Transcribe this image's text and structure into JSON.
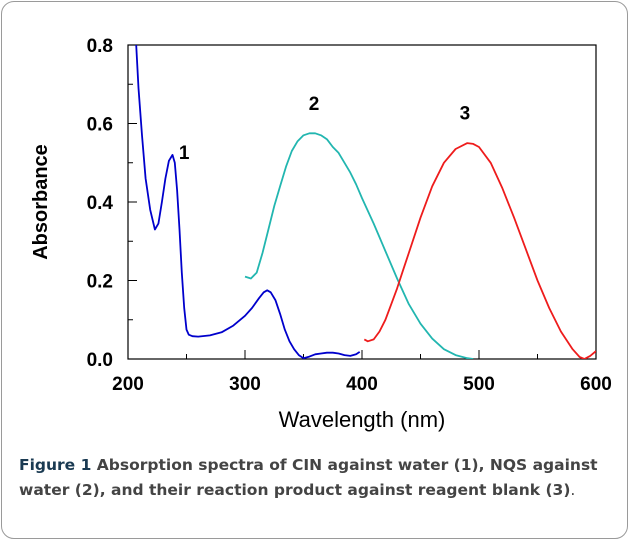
{
  "chart_data": {
    "type": "line",
    "xlabel": "Wavelength (nm)",
    "ylabel": "Absorbance",
    "xlim": [
      200,
      600
    ],
    "ylim": [
      0,
      0.8
    ],
    "x_ticks": [
      "200",
      "300",
      "400",
      "500",
      "600"
    ],
    "y_ticks": [
      "0.0",
      "0.2",
      "0.4",
      "0.6",
      "0.8"
    ],
    "grid": false,
    "series": [
      {
        "name": "1",
        "color": "#0000cc",
        "x": [
          207,
          209,
          212,
          215,
          219,
          223,
          226,
          229,
          232,
          235,
          238,
          240,
          242,
          244,
          246,
          248,
          250,
          252,
          255,
          260,
          270,
          280,
          290,
          300,
          306,
          312,
          316,
          319,
          322,
          326,
          330,
          334,
          338,
          342,
          346,
          350,
          355,
          360,
          365,
          370,
          375,
          380,
          385,
          390,
          395,
          398
        ],
        "y": [
          0.8,
          0.69,
          0.57,
          0.46,
          0.38,
          0.33,
          0.345,
          0.4,
          0.46,
          0.505,
          0.52,
          0.5,
          0.43,
          0.33,
          0.22,
          0.13,
          0.075,
          0.062,
          0.058,
          0.057,
          0.06,
          0.068,
          0.085,
          0.11,
          0.13,
          0.155,
          0.17,
          0.175,
          0.17,
          0.15,
          0.115,
          0.075,
          0.045,
          0.025,
          0.01,
          0.002,
          0.006,
          0.012,
          0.014,
          0.016,
          0.016,
          0.014,
          0.01,
          0.008,
          0.012,
          0.018
        ]
      },
      {
        "name": "2",
        "color": "#22b6b0",
        "x": [
          300,
          305,
          310,
          315,
          320,
          325,
          330,
          335,
          340,
          345,
          350,
          355,
          360,
          365,
          370,
          375,
          380,
          385,
          390,
          395,
          400,
          410,
          420,
          430,
          440,
          450,
          460,
          470,
          480,
          490,
          495
        ],
        "y": [
          0.21,
          0.205,
          0.22,
          0.27,
          0.33,
          0.39,
          0.44,
          0.49,
          0.53,
          0.555,
          0.57,
          0.575,
          0.575,
          0.57,
          0.56,
          0.54,
          0.525,
          0.5,
          0.475,
          0.445,
          0.41,
          0.345,
          0.275,
          0.205,
          0.14,
          0.09,
          0.052,
          0.025,
          0.01,
          0.002,
          0.0
        ]
      },
      {
        "name": "3",
        "color": "#ee1c1c",
        "x": [
          402,
          405,
          410,
          415,
          420,
          425,
          430,
          435,
          440,
          450,
          460,
          470,
          480,
          490,
          495,
          500,
          510,
          520,
          530,
          540,
          550,
          560,
          570,
          580,
          586,
          590,
          595,
          600
        ],
        "y": [
          0.05,
          0.045,
          0.05,
          0.07,
          0.1,
          0.14,
          0.18,
          0.225,
          0.27,
          0.36,
          0.44,
          0.5,
          0.535,
          0.55,
          0.548,
          0.54,
          0.5,
          0.435,
          0.36,
          0.28,
          0.2,
          0.13,
          0.07,
          0.025,
          0.005,
          0.0,
          0.008,
          0.02
        ]
      }
    ],
    "annotations": [
      {
        "text": "1",
        "x": 248,
        "y": 0.51
      },
      {
        "text": "2",
        "x": 359,
        "y": 0.635
      },
      {
        "text": "3",
        "x": 488,
        "y": 0.61
      }
    ]
  },
  "caption": {
    "label": "Figure 1",
    "text": " Absorption spectra of CIN against water (1), NQS against water (2), and their reaction product against reagent blank (3)",
    "end": "."
  }
}
